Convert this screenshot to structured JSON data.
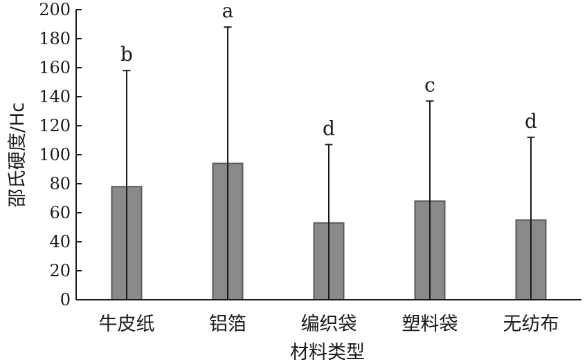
{
  "chart_data": {
    "type": "bar",
    "categories": [
      "牛皮纸",
      "铝箔",
      "编织袋",
      "塑料袋",
      "无纺布"
    ],
    "values": [
      78,
      94,
      53,
      68,
      55
    ],
    "errors": [
      80,
      94,
      54,
      69,
      57
    ],
    "significance": [
      "b",
      "a",
      "d",
      "c",
      "d"
    ],
    "title": "",
    "xlabel": "材料类型",
    "ylabel": "邵氏硬度/Hc",
    "ylim": [
      0,
      200
    ],
    "yticks": [
      "0",
      "20",
      "40",
      "60",
      "80",
      "100",
      "120",
      "140",
      "160",
      "180",
      "200"
    ],
    "grid": false,
    "legend": "none",
    "bar_color": "#8a8a8a",
    "bar_edge_color": "#5a5a5a",
    "axis_color": "#1a1a1a"
  }
}
